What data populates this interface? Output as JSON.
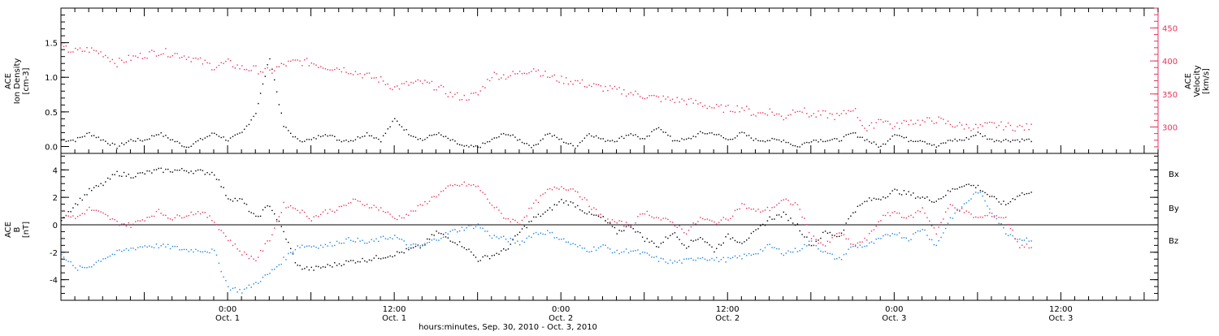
{
  "chart_data": [
    {
      "type": "scatter",
      "panel": "top",
      "ylabel": [
        "ACE",
        "Ion Density",
        "[cm-3]"
      ],
      "y2label": [
        "ACE",
        "Velocity",
        "[km/s]"
      ],
      "ylim": [
        -0.1,
        2.0
      ],
      "y2lim": [
        260,
        480
      ],
      "yticks": [
        "0.0",
        "0.5",
        "1.0",
        "1.5"
      ],
      "yticks_values": [
        0.0,
        0.5,
        1.0,
        1.5
      ],
      "y2ticks": [
        "300",
        "350",
        "400",
        "450"
      ],
      "y2ticks_values": [
        300,
        350,
        400,
        450
      ],
      "series": [
        {
          "axis": "left",
          "color": "#000000",
          "x": [
            0.0,
            2.0,
            4.0,
            6.0,
            8.0,
            10.0,
            12.0,
            14.0,
            16.0,
            18.0,
            20.0,
            22.0,
            24.0,
            26.0,
            28.0,
            30.0,
            32.0,
            34.0,
            36.0,
            38.0,
            40.0,
            42.0,
            44.0,
            46.0,
            48.0,
            50.0,
            52.0,
            54.0,
            56.0,
            58.0,
            60.0,
            62.0,
            64.0,
            66.0,
            68.0,
            70.0,
            72.0,
            74.0,
            76.0,
            78.0,
            80.0,
            82.0,
            84.0,
            86.0,
            88.0,
            90.0,
            92.0,
            94.0,
            96.0,
            98.0,
            100.0,
            102.0,
            104.0,
            106.0,
            108.0,
            110.0,
            112.0,
            114.0,
            116.0,
            118.0,
            120.0,
            122.0,
            124.0,
            126.0,
            128.0,
            130.0,
            132.0,
            134.0,
            136.0,
            138.0
          ],
          "values": [
            0.1,
            0.1,
            0.2,
            0.1,
            0.0,
            0.1,
            0.1,
            0.2,
            0.1,
            0.0,
            0.1,
            0.2,
            0.1,
            0.2,
            0.5,
            1.3,
            0.3,
            0.1,
            0.1,
            0.2,
            0.1,
            0.1,
            0.2,
            0.1,
            0.4,
            0.2,
            0.1,
            0.2,
            0.1,
            0.0,
            0.0,
            0.1,
            0.2,
            0.1,
            0.0,
            0.2,
            0.1,
            0.0,
            0.2,
            0.1,
            0.1,
            0.2,
            0.1,
            0.3,
            0.1,
            0.1,
            0.2,
            0.2,
            0.1,
            0.2,
            0.1,
            0.1,
            0.1,
            0.0,
            0.1,
            0.1,
            0.1,
            0.2,
            0.1,
            0.0,
            0.2,
            0.1,
            0.1,
            0.0,
            0.1,
            0.1,
            0.2,
            0.1,
            0.1,
            0.1
          ]
        },
        {
          "axis": "right",
          "color": "#e8335e",
          "x": [
            0.0,
            2.0,
            4.0,
            6.0,
            8.0,
            10.0,
            12.0,
            14.0,
            16.0,
            18.0,
            20.0,
            22.0,
            24.0,
            26.0,
            28.0,
            30.0,
            32.0,
            34.0,
            36.0,
            38.0,
            40.0,
            42.0,
            44.0,
            46.0,
            48.0,
            50.0,
            52.0,
            54.0,
            56.0,
            58.0,
            60.0,
            62.0,
            64.0,
            66.0,
            68.0,
            70.0,
            72.0,
            74.0,
            76.0,
            78.0,
            80.0,
            82.0,
            84.0,
            86.0,
            88.0,
            90.0,
            92.0,
            94.0,
            96.0,
            98.0,
            100.0,
            102.0,
            104.0,
            106.0,
            108.0,
            110.0,
            112.0,
            114.0,
            116.0,
            118.0,
            120.0,
            122.0,
            124.0,
            126.0,
            128.0,
            130.0,
            132.0,
            134.0,
            136.0,
            138.0
          ],
          "values": [
            420,
            415,
            418,
            412,
            398,
            405,
            410,
            415,
            412,
            408,
            400,
            392,
            398,
            390,
            388,
            384,
            395,
            400,
            398,
            392,
            390,
            385,
            378,
            372,
            360,
            366,
            368,
            362,
            350,
            345,
            350,
            380,
            378,
            382,
            390,
            378,
            372,
            370,
            364,
            360,
            356,
            352,
            348,
            344,
            342,
            340,
            336,
            330,
            328,
            330,
            320,
            325,
            315,
            330,
            318,
            320,
            316,
            330,
            295,
            315,
            300,
            310,
            308,
            312,
            305,
            302,
            300,
            304,
            302,
            300
          ]
        }
      ]
    },
    {
      "type": "scatter",
      "panel": "bottom",
      "ylabel": [
        "ACE",
        "B",
        "[nT]"
      ],
      "ylim": [
        -5.5,
        5.2
      ],
      "yticks": [
        "4",
        "2",
        "0",
        "-2",
        "-4"
      ],
      "yticks_values": [
        4,
        2,
        0,
        -2,
        -4
      ],
      "legend": [
        "Bx",
        "By",
        "Bz"
      ],
      "xticks": [
        {
          "x": 24,
          "time": "0:00",
          "date": "Oct. 1"
        },
        {
          "x": 48,
          "time": "12:00",
          "date": "Oct. 1"
        },
        {
          "x": 72,
          "time": "0:00",
          "date": "Oct. 2"
        },
        {
          "x": 96,
          "time": "12:00",
          "date": "Oct. 2"
        },
        {
          "x": 120,
          "time": "0:00",
          "date": "Oct. 3"
        },
        {
          "x": 144,
          "time": "12:00",
          "date": "Oct. 3"
        }
      ],
      "xlabel": "hours:minutes, Sep. 30, 2010 - Oct.  3, 2010",
      "xlim": [
        0,
        158
      ],
      "series": [
        {
          "name": "Bx",
          "color": "#000000",
          "x": [
            0.0,
            2.0,
            4.0,
            6.0,
            8.0,
            10.0,
            12.0,
            14.0,
            16.0,
            18.0,
            20.0,
            22.0,
            24.0,
            26.0,
            28.0,
            30.0,
            32.0,
            34.0,
            36.0,
            38.0,
            40.0,
            42.0,
            44.0,
            46.0,
            48.0,
            50.0,
            52.0,
            54.0,
            56.0,
            58.0,
            60.0,
            62.0,
            64.0,
            66.0,
            68.0,
            70.0,
            72.0,
            74.0,
            76.0,
            78.0,
            80.0,
            82.0,
            84.0,
            86.0,
            88.0,
            90.0,
            92.0,
            94.0,
            96.0,
            98.0,
            100.0,
            102.0,
            104.0,
            106.0,
            108.0,
            110.0,
            112.0,
            114.0,
            116.0,
            118.0,
            120.0,
            122.0,
            124.0,
            126.0,
            128.0,
            130.0,
            132.0,
            134.0,
            136.0,
            138.0
          ],
          "values": [
            0.5,
            1.5,
            2.5,
            3.0,
            3.8,
            3.6,
            3.8,
            4.0,
            4.0,
            4.0,
            3.9,
            3.8,
            2.0,
            1.8,
            0.5,
            1.5,
            -0.5,
            -3.0,
            -3.2,
            -3.0,
            -2.8,
            -2.6,
            -2.5,
            -2.3,
            -2.1,
            -1.8,
            -1.5,
            -0.5,
            -1.0,
            -1.5,
            -2.5,
            -2.2,
            -1.8,
            -0.5,
            0.5,
            1.0,
            1.8,
            1.5,
            0.8,
            0.5,
            -0.5,
            0.0,
            -1.0,
            -1.5,
            -0.5,
            -1.5,
            -0.8,
            -1.8,
            -0.8,
            -1.2,
            -0.5,
            0.5,
            0.8,
            0.0,
            -1.5,
            -0.5,
            -0.8,
            1.0,
            1.8,
            2.0,
            2.5,
            2.3,
            2.0,
            1.8,
            2.5,
            3.0,
            2.8,
            2.0,
            1.5,
            2.3
          ]
        },
        {
          "name": "By",
          "color": "#1d83e0",
          "x": [
            0.0,
            2.0,
            4.0,
            6.0,
            8.0,
            10.0,
            12.0,
            14.0,
            16.0,
            18.0,
            20.0,
            22.0,
            24.0,
            26.0,
            28.0,
            30.0,
            32.0,
            34.0,
            36.0,
            38.0,
            40.0,
            42.0,
            44.0,
            46.0,
            48.0,
            50.0,
            52.0,
            54.0,
            56.0,
            58.0,
            60.0,
            62.0,
            64.0,
            66.0,
            68.0,
            70.0,
            72.0,
            74.0,
            76.0,
            78.0,
            80.0,
            82.0,
            84.0,
            86.0,
            88.0,
            90.0,
            92.0,
            94.0,
            96.0,
            98.0,
            100.0,
            102.0,
            104.0,
            106.0,
            108.0,
            110.0,
            112.0,
            114.0,
            116.0,
            118.0,
            120.0,
            122.0,
            124.0,
            126.0,
            128.0,
            130.0,
            132.0,
            134.0,
            136.0,
            138.0
          ],
          "values": [
            -2.0,
            -3.2,
            -3.0,
            -2.4,
            -2.0,
            -1.7,
            -1.5,
            -1.5,
            -1.6,
            -1.8,
            -1.8,
            -1.9,
            -4.5,
            -4.8,
            -4.2,
            -3.5,
            -2.5,
            -1.5,
            -1.5,
            -1.5,
            -1.2,
            -1.0,
            -1.3,
            -1.0,
            -0.8,
            -1.5,
            -1.5,
            -1.0,
            -0.5,
            -0.2,
            0.0,
            -0.8,
            -1.0,
            -1.3,
            -0.6,
            -0.5,
            -1.0,
            -1.5,
            -1.8,
            -1.5,
            -2.0,
            -1.8,
            -2.1,
            -2.5,
            -2.7,
            -2.6,
            -2.3,
            -2.5,
            -2.5,
            -2.3,
            -2.0,
            -1.5,
            -2.0,
            -1.8,
            -1.2,
            -2.0,
            -2.5,
            -1.5,
            -1.5,
            -1.0,
            -0.5,
            -1.0,
            -0.2,
            -1.5,
            0.5,
            1.5,
            2.5,
            1.0,
            -0.5,
            -1.0
          ]
        },
        {
          "name": "Bz",
          "color": "#e8335e",
          "x": [
            0.0,
            2.0,
            4.0,
            6.0,
            8.0,
            10.0,
            12.0,
            14.0,
            16.0,
            18.0,
            20.0,
            22.0,
            24.0,
            26.0,
            28.0,
            30.0,
            32.0,
            34.0,
            36.0,
            38.0,
            40.0,
            42.0,
            44.0,
            46.0,
            48.0,
            50.0,
            52.0,
            54.0,
            56.0,
            58.0,
            60.0,
            62.0,
            64.0,
            66.0,
            68.0,
            70.0,
            72.0,
            74.0,
            76.0,
            78.0,
            80.0,
            82.0,
            84.0,
            86.0,
            88.0,
            90.0,
            92.0,
            94.0,
            96.0,
            98.0,
            100.0,
            102.0,
            104.0,
            106.0,
            108.0,
            110.0,
            112.0,
            114.0,
            116.0,
            118.0,
            120.0,
            122.0,
            124.0,
            126.0,
            128.0,
            130.0,
            132.0,
            134.0,
            136.0,
            138.0
          ],
          "values": [
            1.0,
            0.5,
            1.2,
            0.8,
            0.2,
            0.0,
            0.5,
            1.0,
            0.5,
            0.8,
            1.0,
            0.3,
            -1.0,
            -2.0,
            -2.5,
            -1.0,
            1.5,
            1.2,
            0.5,
            1.0,
            1.2,
            1.8,
            1.5,
            1.2,
            0.5,
            0.8,
            1.5,
            2.2,
            2.8,
            3.0,
            2.8,
            1.5,
            0.5,
            0.2,
            1.5,
            2.5,
            2.8,
            2.6,
            1.5,
            0.5,
            0.2,
            0.0,
            1.0,
            0.5,
            0.2,
            -0.5,
            0.5,
            0.2,
            0.5,
            1.5,
            1.0,
            1.2,
            1.8,
            1.5,
            -0.8,
            -1.5,
            -0.5,
            -1.5,
            -1.0,
            0.5,
            1.0,
            0.5,
            1.2,
            -0.5,
            1.5,
            1.0,
            0.5,
            0.8,
            0.5,
            -1.5
          ]
        }
      ]
    }
  ]
}
